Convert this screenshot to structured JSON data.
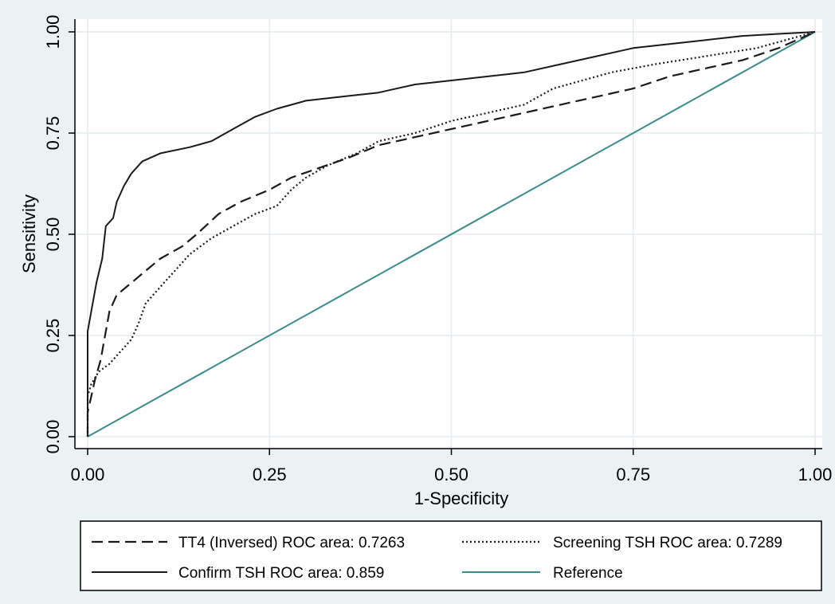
{
  "chart_data": {
    "type": "line",
    "title": "",
    "xlabel": "1-Specificity",
    "ylabel": "Sensitivity",
    "xlim": [
      0,
      1
    ],
    "ylim": [
      0,
      1
    ],
    "xticks": [
      "0.00",
      "0.25",
      "0.50",
      "0.75",
      "1.00"
    ],
    "yticks": [
      "0.00",
      "0.25",
      "0.50",
      "0.75",
      "1.00"
    ],
    "grid": true,
    "legend_position": "bottom",
    "colors": {
      "background": "#eaf2f3",
      "plot_area": "#ffffff",
      "grid": "#e3ecee",
      "series": "#1a1a1a",
      "reference": "#3a8c8a"
    },
    "series": [
      {
        "name": "TT4 (Inversed) ROC area: 0.7263",
        "style": "dashed",
        "points": [
          [
            0,
            0
          ],
          [
            0,
            0.06
          ],
          [
            0.005,
            0.1
          ],
          [
            0.01,
            0.14
          ],
          [
            0.018,
            0.19
          ],
          [
            0.025,
            0.26
          ],
          [
            0.03,
            0.31
          ],
          [
            0.04,
            0.35
          ],
          [
            0.06,
            0.38
          ],
          [
            0.08,
            0.41
          ],
          [
            0.1,
            0.44
          ],
          [
            0.13,
            0.47
          ],
          [
            0.15,
            0.5
          ],
          [
            0.18,
            0.55
          ],
          [
            0.21,
            0.58
          ],
          [
            0.25,
            0.61
          ],
          [
            0.28,
            0.64
          ],
          [
            0.32,
            0.665
          ],
          [
            0.36,
            0.69
          ],
          [
            0.4,
            0.72
          ],
          [
            0.45,
            0.74
          ],
          [
            0.5,
            0.76
          ],
          [
            0.55,
            0.78
          ],
          [
            0.6,
            0.8
          ],
          [
            0.65,
            0.82
          ],
          [
            0.7,
            0.84
          ],
          [
            0.75,
            0.86
          ],
          [
            0.8,
            0.89
          ],
          [
            0.85,
            0.91
          ],
          [
            0.9,
            0.93
          ],
          [
            0.95,
            0.96
          ],
          [
            1.0,
            1.0
          ]
        ]
      },
      {
        "name": "Screening TSH ROC area: 0.7289",
        "style": "dotted",
        "points": [
          [
            0,
            0
          ],
          [
            0,
            0.1
          ],
          [
            0.005,
            0.13
          ],
          [
            0.015,
            0.16
          ],
          [
            0.03,
            0.18
          ],
          [
            0.045,
            0.21
          ],
          [
            0.06,
            0.24
          ],
          [
            0.07,
            0.28
          ],
          [
            0.08,
            0.33
          ],
          [
            0.1,
            0.37
          ],
          [
            0.12,
            0.41
          ],
          [
            0.14,
            0.45
          ],
          [
            0.17,
            0.49
          ],
          [
            0.2,
            0.52
          ],
          [
            0.23,
            0.55
          ],
          [
            0.26,
            0.57
          ],
          [
            0.28,
            0.61
          ],
          [
            0.3,
            0.64
          ],
          [
            0.33,
            0.67
          ],
          [
            0.37,
            0.7
          ],
          [
            0.4,
            0.73
          ],
          [
            0.45,
            0.75
          ],
          [
            0.5,
            0.78
          ],
          [
            0.55,
            0.8
          ],
          [
            0.6,
            0.82
          ],
          [
            0.64,
            0.86
          ],
          [
            0.68,
            0.88
          ],
          [
            0.72,
            0.9
          ],
          [
            0.78,
            0.92
          ],
          [
            0.85,
            0.94
          ],
          [
            0.92,
            0.96
          ],
          [
            1.0,
            1.0
          ]
        ]
      },
      {
        "name": "Confirm TSH ROC area: 0.859",
        "style": "solid",
        "points": [
          [
            0,
            0
          ],
          [
            0,
            0.26
          ],
          [
            0.005,
            0.31
          ],
          [
            0.012,
            0.38
          ],
          [
            0.02,
            0.44
          ],
          [
            0.025,
            0.52
          ],
          [
            0.035,
            0.54
          ],
          [
            0.04,
            0.58
          ],
          [
            0.05,
            0.62
          ],
          [
            0.06,
            0.65
          ],
          [
            0.075,
            0.68
          ],
          [
            0.1,
            0.7
          ],
          [
            0.14,
            0.715
          ],
          [
            0.17,
            0.73
          ],
          [
            0.2,
            0.76
          ],
          [
            0.23,
            0.79
          ],
          [
            0.26,
            0.81
          ],
          [
            0.3,
            0.83
          ],
          [
            0.35,
            0.84
          ],
          [
            0.4,
            0.85
          ],
          [
            0.45,
            0.87
          ],
          [
            0.5,
            0.88
          ],
          [
            0.55,
            0.89
          ],
          [
            0.6,
            0.9
          ],
          [
            0.65,
            0.92
          ],
          [
            0.7,
            0.94
          ],
          [
            0.75,
            0.96
          ],
          [
            0.8,
            0.97
          ],
          [
            0.85,
            0.98
          ],
          [
            0.9,
            0.99
          ],
          [
            0.95,
            0.995
          ],
          [
            1.0,
            1.0
          ]
        ]
      },
      {
        "name": "Reference",
        "style": "reference",
        "points": [
          [
            0,
            0
          ],
          [
            1,
            1
          ]
        ]
      }
    ]
  }
}
